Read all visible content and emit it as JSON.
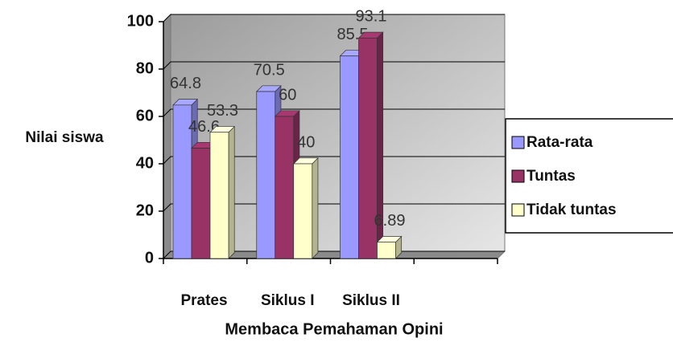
{
  "chart_data": {
    "type": "bar3d",
    "y_axis_label": "Nilai siswa",
    "x_axis_label": "Membaca Pemahaman Opini",
    "categories": [
      "Prates",
      "Siklus I",
      "Siklus II"
    ],
    "series": [
      {
        "name": "Rata-rata",
        "color": "#9999ff",
        "values": [
          64.8,
          70.5,
          85.5
        ]
      },
      {
        "name": "Tuntas",
        "color": "#993366",
        "values": [
          46.6,
          60,
          93.1
        ]
      },
      {
        "name": "Tidak tuntas",
        "color": "#ffffcc",
        "values": [
          53.3,
          40,
          6.89
        ]
      }
    ],
    "ylim": [
      0,
      100
    ],
    "yticks": [
      0,
      20,
      40,
      60,
      80,
      100
    ],
    "grid": true,
    "legend": "right"
  }
}
